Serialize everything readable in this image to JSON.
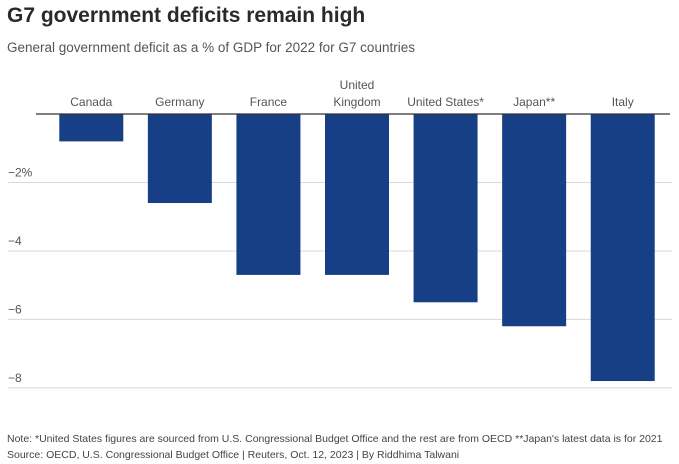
{
  "title": "G7 government deficits remain high",
  "subtitle": "General government deficit as a % of GDP for 2022 for G7 countries",
  "footer": {
    "note": "Note: *United States figures are sourced from U.S. Congressional Budget Office and the rest are from OECD **Japan's latest data is for 2021",
    "source": "Source: OECD, U.S. Congressional Budget Office | Reuters, Oct. 12, 2023 | By Riddhima Talwani"
  },
  "chart_data": {
    "type": "bar",
    "title": "G7 government deficits remain high",
    "subtitle": "General government deficit as a % of GDP for 2022 for G7 countries",
    "categories": [
      [
        "Canada"
      ],
      [
        "Germany"
      ],
      [
        "France"
      ],
      [
        "United",
        "Kingdom"
      ],
      [
        "United States*"
      ],
      [
        "Japan**"
      ],
      [
        "Italy"
      ]
    ],
    "values": [
      -0.8,
      -2.6,
      -4.7,
      -4.7,
      -5.5,
      -6.2,
      -7.8
    ],
    "ylim": [
      -8.5,
      0
    ],
    "yticks": [
      -2,
      -4,
      -6,
      -8
    ],
    "ytick_labels": [
      "−2%",
      "−4",
      "−6",
      "−8"
    ],
    "xlabel": "",
    "ylabel": "",
    "grid": true,
    "bar_color": "#173f85",
    "grid_color": "#d9d9d9",
    "zero_line_color": "#333333"
  }
}
